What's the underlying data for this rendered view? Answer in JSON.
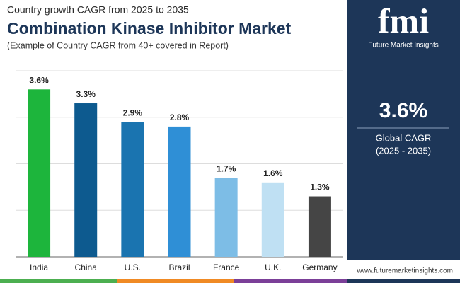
{
  "header": {
    "kicker": "Country growth CAGR from 2025 to 2035",
    "title": "Combination Kinase Inhibitor Market",
    "note": "(Example of Country CAGR from 40+ covered in Report)"
  },
  "brand": {
    "logo": "fmi",
    "name": "Future Market Insights",
    "website": "www.futuremarketinsights.com"
  },
  "highlight": {
    "value": "3.6%",
    "label": "Global CAGR",
    "period": "(2025 - 2035)"
  },
  "chart_data": {
    "type": "bar",
    "categories": [
      "India",
      "China",
      "U.S.",
      "Brazil",
      "France",
      "U.K.",
      "Germany"
    ],
    "values": [
      3.6,
      3.3,
      2.9,
      2.8,
      1.7,
      1.6,
      1.3
    ],
    "value_labels": [
      "3.6%",
      "3.3%",
      "2.9%",
      "2.8%",
      "1.7%",
      "1.6%",
      "1.3%"
    ],
    "colors": [
      "#1db53c",
      "#0d5a8f",
      "#1a74b0",
      "#2f8fd6",
      "#7dbde6",
      "#bfe0f3",
      "#454545"
    ],
    "ylim": [
      0,
      4
    ],
    "yticks": [
      0,
      1,
      2,
      3,
      4
    ],
    "grid": true
  }
}
